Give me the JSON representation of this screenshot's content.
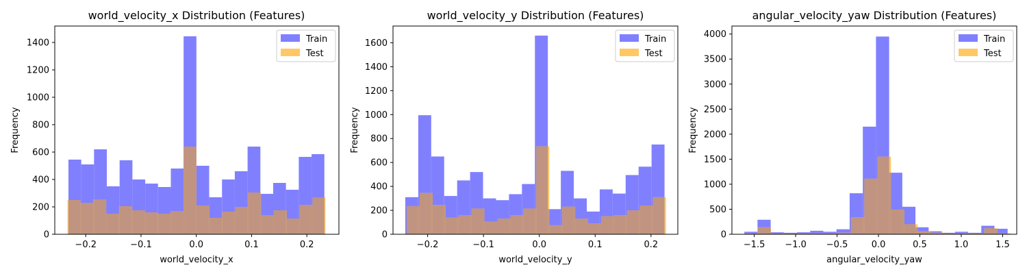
{
  "colors": {
    "train": "#8080ff",
    "test": "#ffc864",
    "overlap": "#c09480"
  },
  "chart_data": [
    {
      "type": "bar",
      "title": "world_velocity_x Distribution (Features)",
      "xlabel": "world_velocity_x",
      "ylabel": "Frequency",
      "xlim": [
        -0.256,
        0.258
      ],
      "ylim": [
        0,
        1520
      ],
      "xticks": [
        -0.2,
        -0.1,
        0.0,
        0.1,
        0.2
      ],
      "xtick_labels": [
        "−0.2",
        "−0.1",
        "0.0",
        "0.1",
        "0.2"
      ],
      "yticks": [
        0,
        200,
        400,
        600,
        800,
        1000,
        1200,
        1400
      ],
      "ytick_labels": [
        "0",
        "200",
        "400",
        "600",
        "800",
        "1000",
        "1200",
        "1400"
      ],
      "legend": {
        "position": "top-right",
        "entries": [
          "Train",
          "Test"
        ]
      },
      "series": [
        {
          "name": "Train",
          "bin_start": -0.2313,
          "bin_width": 0.02315,
          "values": [
            545,
            510,
            620,
            350,
            540,
            400,
            370,
            345,
            480,
            1445,
            500,
            270,
            400,
            460,
            640,
            295,
            375,
            325,
            565,
            585
          ]
        },
        {
          "name": "Test",
          "bin_start": -0.233,
          "bin_width": 0.02333,
          "values": [
            250,
            230,
            255,
            150,
            205,
            175,
            160,
            150,
            170,
            640,
            210,
            120,
            165,
            200,
            305,
            140,
            175,
            115,
            215,
            270
          ]
        }
      ]
    },
    {
      "type": "bar",
      "title": "world_velocity_y Distribution (Features)",
      "xlabel": "world_velocity_y",
      "ylabel": "Frequency",
      "xlim": [
        -0.262,
        0.248
      ],
      "ylim": [
        0,
        1740
      ],
      "xticks": [
        -0.2,
        -0.1,
        0.0,
        0.1,
        0.2
      ],
      "xtick_labels": [
        "−0.2",
        "−0.1",
        "0.0",
        "0.1",
        "0.2"
      ],
      "yticks": [
        0,
        200,
        400,
        600,
        800,
        1000,
        1200,
        1400,
        1600
      ],
      "ytick_labels": [
        "0",
        "200",
        "400",
        "600",
        "800",
        "1000",
        "1200",
        "1400",
        "1600"
      ],
      "legend": {
        "position": "top-right",
        "entries": [
          "Train",
          "Test"
        ]
      },
      "series": [
        {
          "name": "Train",
          "bin_start": -0.24,
          "bin_width": 0.02321,
          "values": [
            310,
            995,
            650,
            320,
            450,
            520,
            300,
            285,
            335,
            420,
            1660,
            210,
            530,
            300,
            190,
            375,
            340,
            495,
            565,
            750
          ]
        },
        {
          "name": "Test",
          "bin_start": -0.2375,
          "bin_width": 0.02321,
          "values": [
            235,
            345,
            245,
            140,
            160,
            215,
            105,
            130,
            160,
            215,
            735,
            75,
            230,
            130,
            90,
            150,
            160,
            200,
            240,
            310
          ]
        }
      ]
    },
    {
      "type": "bar",
      "title": "angular_velocity_yaw Distribution (Features)",
      "xlabel": "angular_velocity_yaw",
      "ylabel": "Frequency",
      "xlim": [
        -1.77,
        1.67
      ],
      "ylim": [
        0,
        4160
      ],
      "xticks": [
        -1.5,
        -1.0,
        -0.5,
        0.0,
        0.5,
        1.0,
        1.5
      ],
      "xtick_labels": [
        "−1.5",
        "−1.0",
        "−0.5",
        "0.0",
        "0.5",
        "1.0",
        "1.5"
      ],
      "yticks": [
        0,
        500,
        1000,
        1500,
        2000,
        2500,
        3000,
        3500,
        4000
      ],
      "ytick_labels": [
        "0",
        "500",
        "1000",
        "1500",
        "2000",
        "2500",
        "3000",
        "3500",
        "4000"
      ],
      "legend": {
        "position": "top-right",
        "entries": [
          "Train",
          "Test"
        ]
      },
      "series": [
        {
          "name": "Train",
          "bin_start": -1.62,
          "bin_width": 0.159,
          "values": [
            50,
            290,
            40,
            30,
            40,
            70,
            50,
            100,
            820,
            2150,
            3950,
            1230,
            550,
            140,
            60,
            30,
            50,
            30,
            170,
            110
          ]
        },
        {
          "name": "Test",
          "bin_start": -1.62,
          "bin_width": 0.161,
          "values": [
            20,
            140,
            15,
            10,
            15,
            20,
            20,
            30,
            340,
            1110,
            1550,
            490,
            200,
            60,
            30,
            15,
            20,
            15,
            120,
            20
          ]
        }
      ]
    }
  ]
}
